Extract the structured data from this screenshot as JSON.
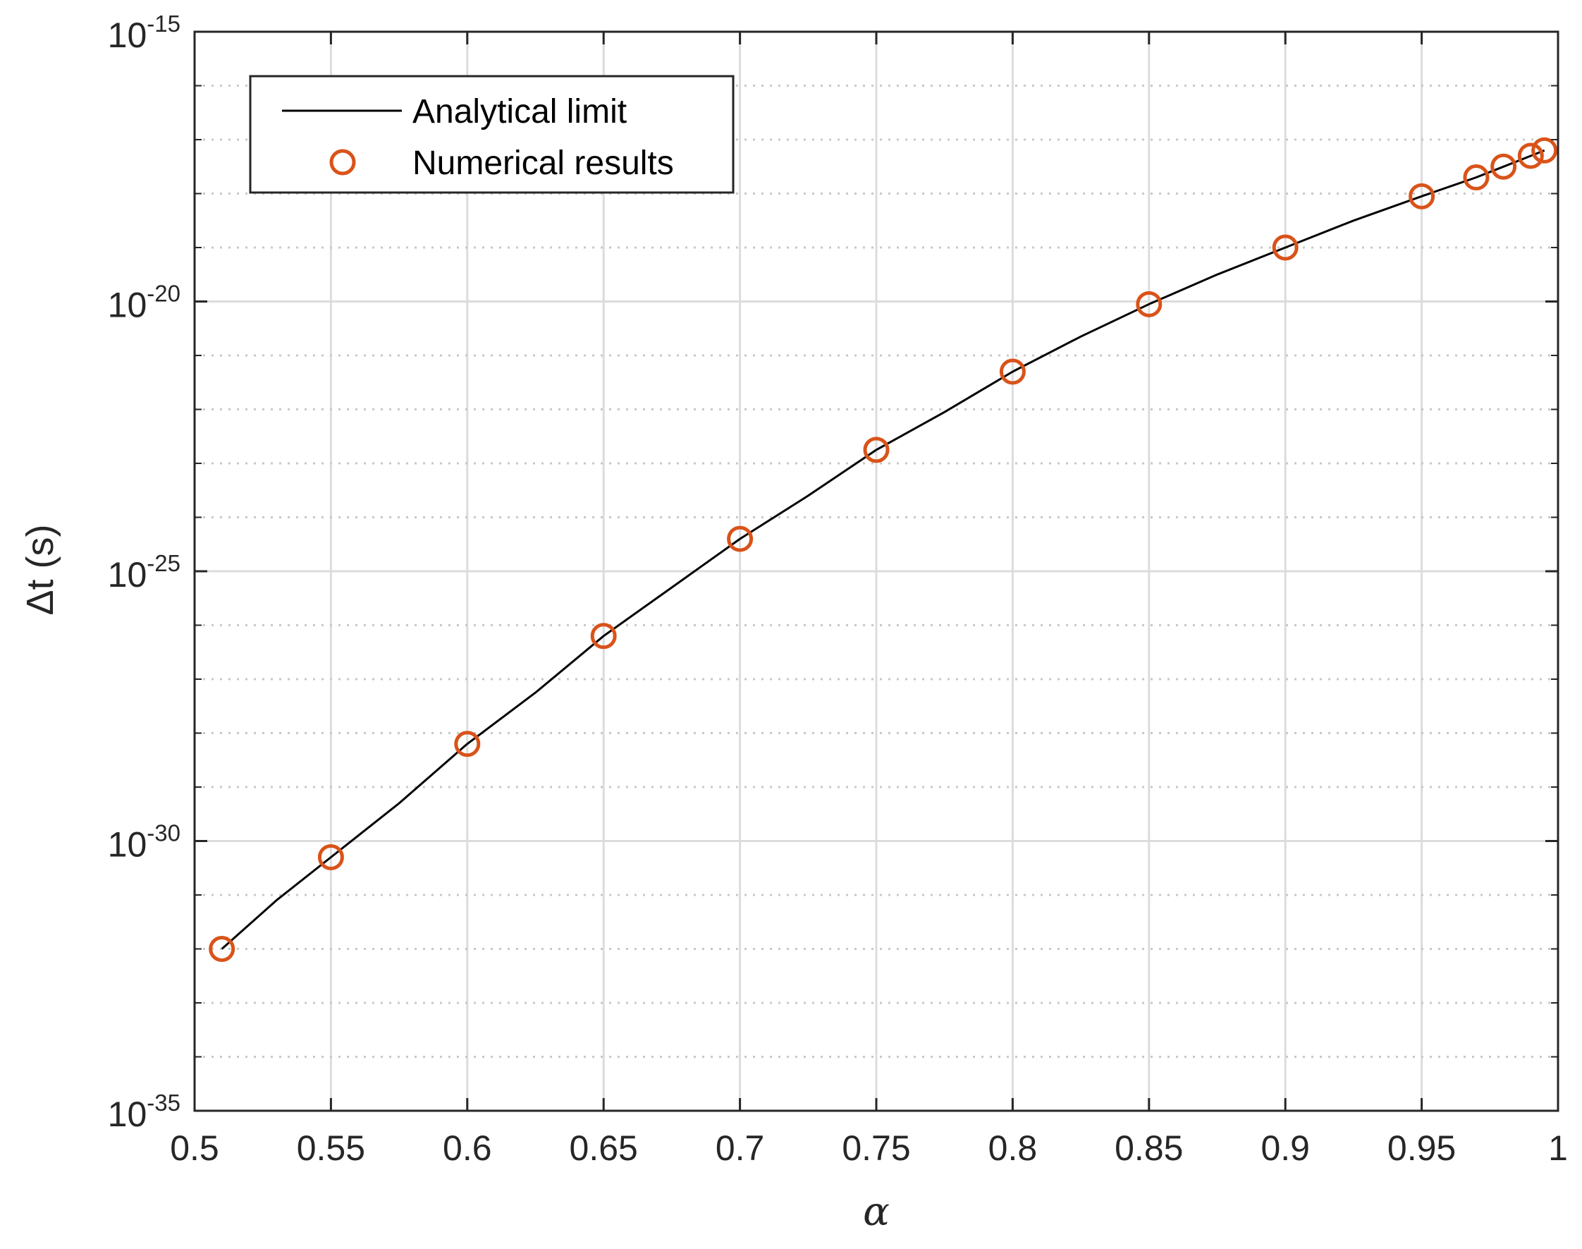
{
  "chart_data": {
    "type": "line",
    "xlabel": "α",
    "ylabel": "Δt (s)",
    "xlim": [
      0.5,
      1.0
    ],
    "ylim_log10": [
      -35,
      -15
    ],
    "yscale": "log",
    "grid": true,
    "legend_position": "top-left",
    "x_ticks": [
      "0.5",
      "0.55",
      "0.6",
      "0.65",
      "0.7",
      "0.75",
      "0.8",
      "0.85",
      "0.9",
      "0.95",
      "1"
    ],
    "y_ticks": [
      {
        "base": "10",
        "exp": "-15",
        "value": -15
      },
      {
        "base": "10",
        "exp": "-20",
        "value": -20
      },
      {
        "base": "10",
        "exp": "-25",
        "value": -25
      },
      {
        "base": "10",
        "exp": "-30",
        "value": -30
      },
      {
        "base": "10",
        "exp": "-35",
        "value": -35
      }
    ],
    "series": [
      {
        "name": "Analytical limit",
        "style": "line",
        "color": "#000000",
        "x": [
          0.51,
          0.53,
          0.55,
          0.575,
          0.6,
          0.625,
          0.65,
          0.675,
          0.7,
          0.725,
          0.75,
          0.775,
          0.8,
          0.825,
          0.85,
          0.875,
          0.9,
          0.925,
          0.95,
          0.97,
          0.98,
          0.99,
          0.995
        ],
        "log10_y": [
          -32.0,
          -31.1,
          -30.3,
          -29.3,
          -28.2,
          -27.25,
          -26.2,
          -25.3,
          -24.4,
          -23.6,
          -22.75,
          -22.05,
          -21.3,
          -20.65,
          -20.05,
          -19.5,
          -19.0,
          -18.5,
          -18.05,
          -17.7,
          -17.5,
          -17.3,
          -17.2
        ]
      },
      {
        "name": "Numerical results",
        "style": "marker",
        "color": "#d95319",
        "x": [
          0.51,
          0.55,
          0.6,
          0.65,
          0.7,
          0.75,
          0.8,
          0.85,
          0.9,
          0.95,
          0.97,
          0.98,
          0.99,
          0.995
        ],
        "log10_y": [
          -32.0,
          -30.3,
          -28.2,
          -26.2,
          -24.4,
          -22.75,
          -21.3,
          -20.05,
          -19.0,
          -18.05,
          -17.7,
          -17.5,
          -17.3,
          -17.2
        ]
      }
    ]
  }
}
